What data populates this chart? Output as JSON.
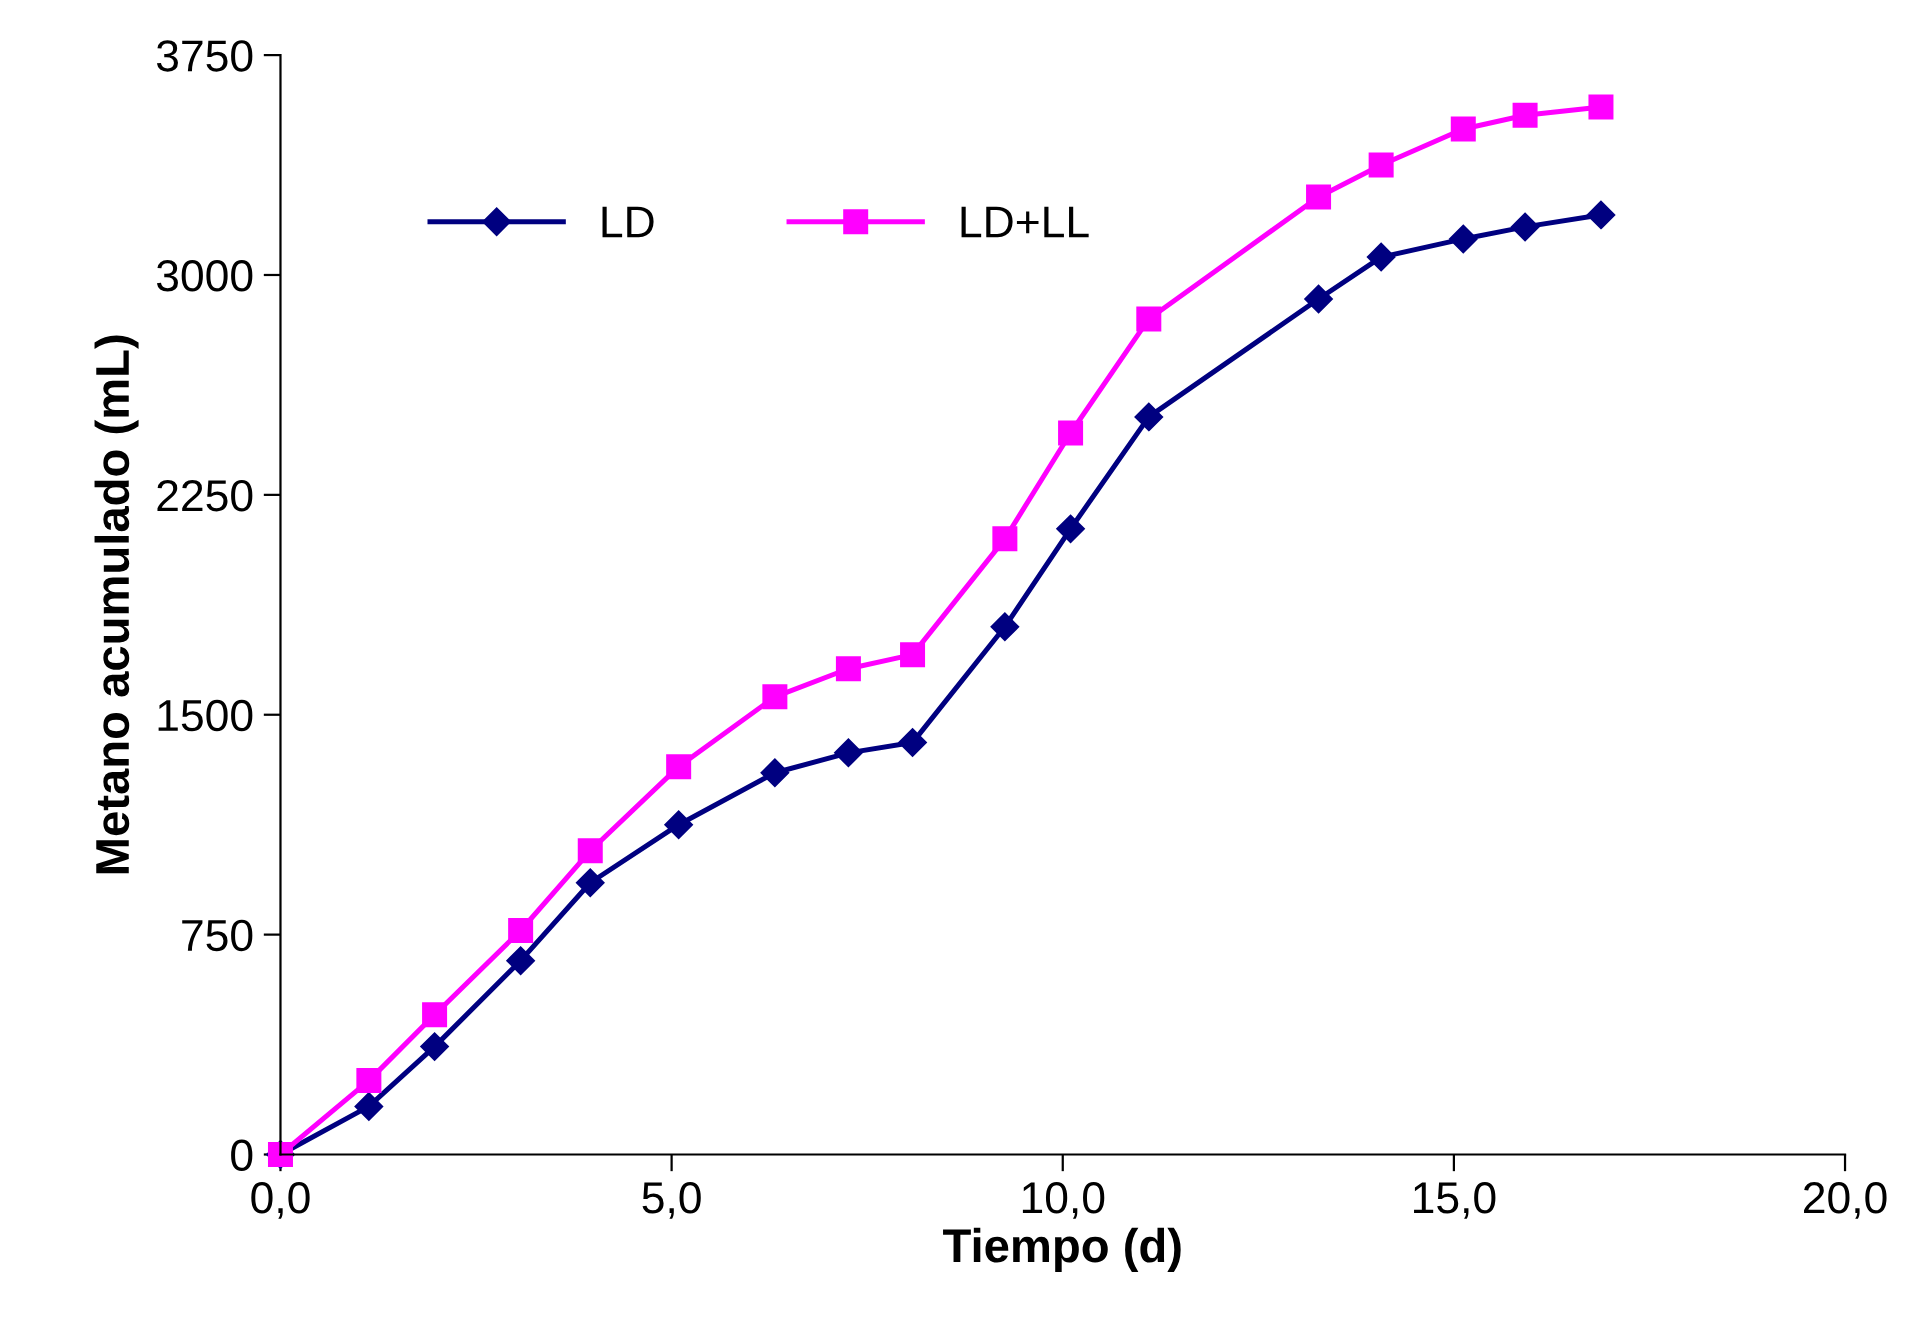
{
  "chart_data": {
    "type": "line",
    "xlabel": "Tiempo (d)",
    "ylabel": "Metano acumulado (mL)",
    "xlim": [
      0,
      20
    ],
    "xticks": [
      {
        "value": 0,
        "label": "0,0"
      },
      {
        "value": 5,
        "label": "5,0"
      },
      {
        "value": 10,
        "label": "10,0"
      },
      {
        "value": 15,
        "label": "15,0"
      },
      {
        "value": 20,
        "label": "20,0"
      }
    ],
    "ylim": [
      0,
      3750
    ],
    "yticks": [
      0,
      750,
      1500,
      2250,
      3000,
      3750
    ],
    "grid": false,
    "legend": "top left",
    "series": [
      {
        "name": "LD",
        "color": "#000080",
        "marker": "diamond",
        "x": [
          0,
          1.13,
          1.97,
          3.07,
          3.96,
          5.09,
          6.32,
          7.26,
          8.08,
          9.26,
          10.1,
          11.1,
          13.27,
          14.07,
          15.12,
          15.91,
          16.88
        ],
        "values": [
          0,
          164,
          368,
          661,
          927,
          1125,
          1302,
          1370,
          1405,
          1800,
          2134,
          2516,
          2918,
          3061,
          3123,
          3164,
          3205
        ]
      },
      {
        "name": "LD+LL",
        "color": "#ff00ff",
        "marker": "square",
        "x": [
          0,
          1.13,
          1.97,
          3.07,
          3.96,
          5.09,
          6.32,
          7.26,
          8.08,
          9.26,
          10.1,
          11.1,
          13.27,
          14.07,
          15.12,
          15.91,
          16.88
        ],
        "values": [
          0,
          252,
          477,
          764,
          1036,
          1323,
          1561,
          1657,
          1705,
          2100,
          2461,
          2850,
          3266,
          3375,
          3498,
          3545,
          3573
        ]
      }
    ]
  }
}
